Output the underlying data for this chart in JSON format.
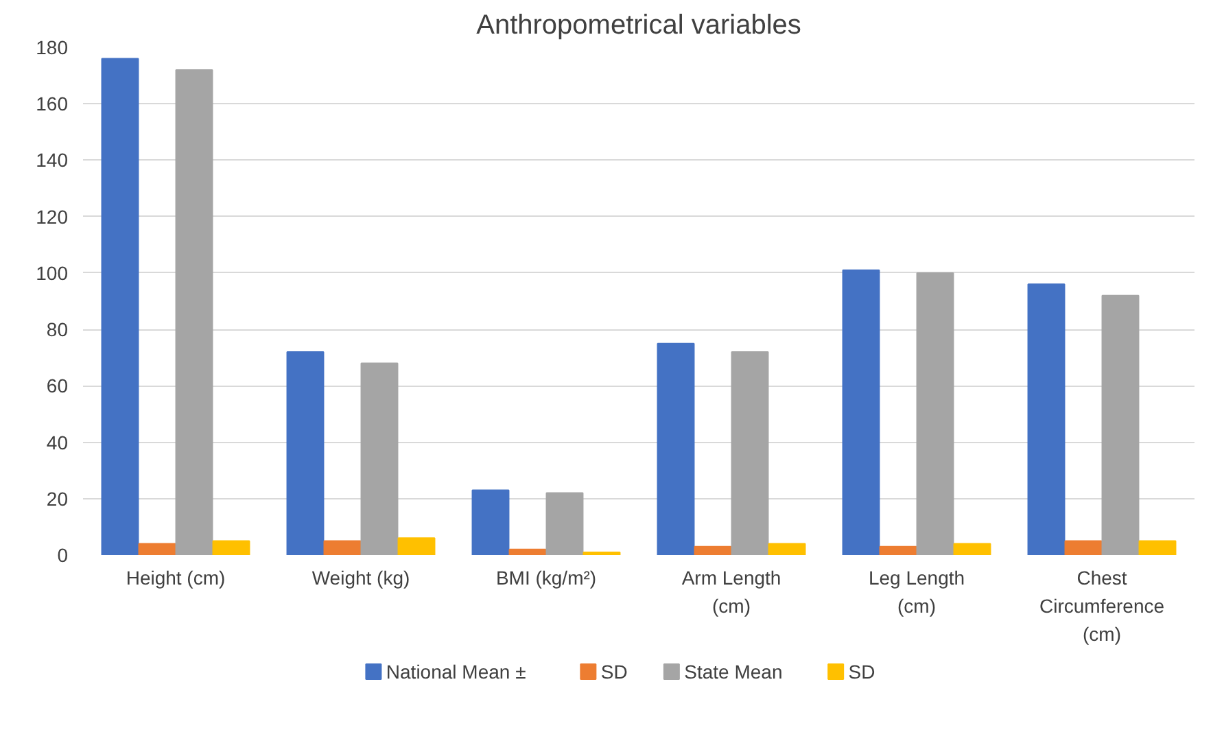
{
  "chart_data": {
    "type": "bar",
    "title": "Anthropometrical variables",
    "categories": [
      "Height (cm)",
      "Weight (kg)",
      "BMI (kg/m²)",
      "Arm Length (cm)",
      "Leg Length (cm)",
      "Chest Circumference (cm)"
    ],
    "series": [
      {
        "name": "National Mean ±",
        "color": "#4472c4",
        "values": [
          176,
          72,
          23,
          75,
          101,
          96
        ]
      },
      {
        "name": "SD",
        "color": "#ed7d31",
        "values": [
          4,
          5,
          2,
          3,
          3,
          5
        ]
      },
      {
        "name": "State Mean",
        "color": "#a5a5a5",
        "values": [
          172,
          68,
          22,
          72,
          100,
          92
        ]
      },
      {
        "name": "SD",
        "color": "#ffc000",
        "values": [
          5,
          6,
          1,
          4,
          4,
          5
        ]
      }
    ],
    "ylim": [
      0,
      180
    ],
    "yticks": [
      0,
      20,
      40,
      60,
      80,
      100,
      120,
      140,
      160,
      180
    ],
    "grid": "y",
    "legend": "bottom"
  }
}
